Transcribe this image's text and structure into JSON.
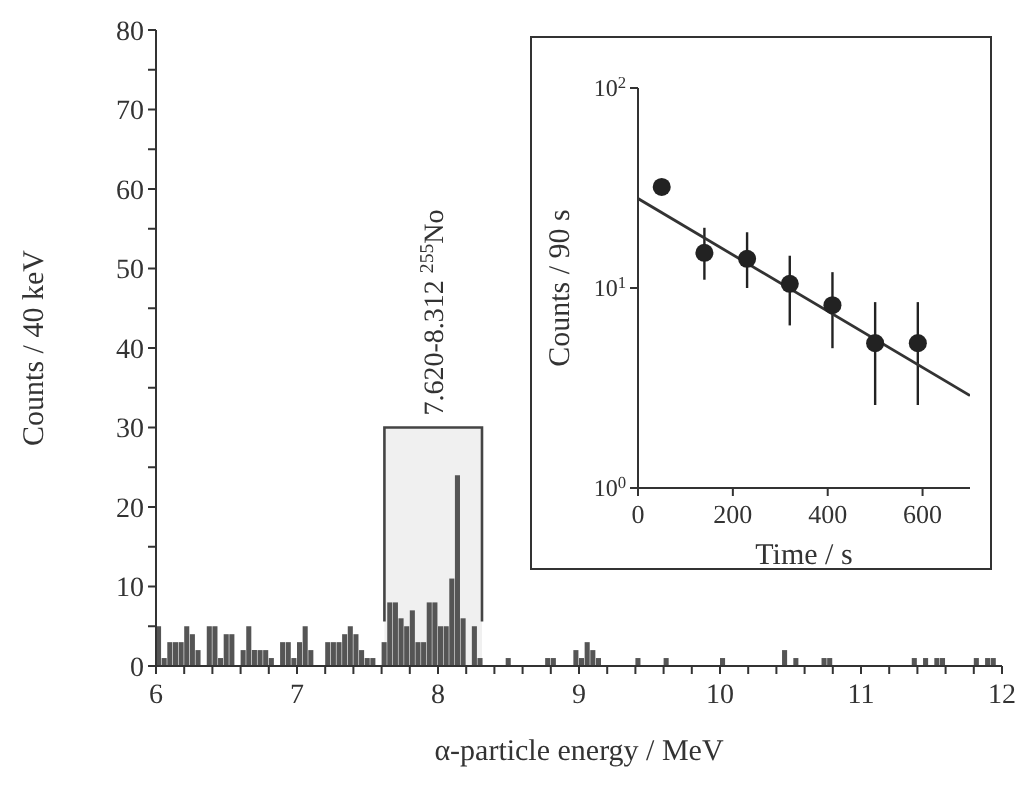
{
  "chart_data": [
    {
      "type": "histogram",
      "xlabel": "α-particle energy / MeV",
      "ylabel": "Counts / 40 keV",
      "color": "#555555",
      "bins": [
        6,
        6.04,
        6.08,
        6.12,
        6.16,
        6.2,
        6.24,
        6.28,
        6.32,
        6.36,
        6.4,
        6.44,
        6.48,
        6.52,
        6.56,
        6.6,
        6.64,
        6.68,
        6.72,
        6.76,
        6.8,
        6.84,
        6.88,
        6.92,
        6.96,
        7,
        7.04,
        7.08,
        7.12,
        7.16,
        7.2,
        7.24,
        7.28,
        7.32,
        7.36,
        7.4,
        7.44,
        7.48,
        7.52,
        7.56,
        7.6,
        7.64,
        7.68,
        7.72,
        7.76,
        7.8,
        7.84,
        7.88,
        7.92,
        7.96,
        8,
        8.04,
        8.08,
        8.12,
        8.16,
        8.2,
        8.24,
        8.28,
        8.32,
        8.36,
        8.4,
        8.44,
        8.48,
        8.52,
        8.56,
        8.6,
        8.64,
        8.68,
        8.72,
        8.76,
        8.8,
        8.84,
        8.88,
        8.92,
        8.96,
        9,
        9.04,
        9.08,
        9.12,
        9.16,
        9.2,
        9.24,
        9.28,
        9.32,
        9.36,
        9.4,
        9.44,
        9.48,
        9.52,
        9.56,
        9.6,
        9.64,
        9.68,
        9.72,
        9.76,
        9.8,
        9.84,
        9.88,
        9.92,
        9.96,
        10,
        10.04,
        10.08,
        10.12,
        10.16,
        10.2,
        10.24,
        10.28,
        10.32,
        10.36,
        10.4,
        10.44,
        10.48,
        10.52,
        10.56,
        10.6,
        10.64,
        10.68,
        10.72,
        10.76,
        10.8,
        10.84,
        10.88,
        10.92,
        10.96,
        11,
        11.04,
        11.08,
        11.12,
        11.16,
        11.2,
        11.24,
        11.28,
        11.32,
        11.36,
        11.4,
        11.44,
        11.48,
        11.52,
        11.56,
        11.6,
        11.64,
        11.68,
        11.72,
        11.76,
        11.8,
        11.84,
        11.88,
        11.92,
        11.96,
        12
      ],
      "values": [
        5,
        1,
        3,
        3,
        3,
        5,
        4,
        2,
        0,
        5,
        5,
        1,
        4,
        4,
        0,
        2,
        5,
        2,
        2,
        2,
        1,
        0,
        3,
        3,
        1,
        3,
        5,
        2,
        0,
        0,
        3,
        3,
        3,
        4,
        5,
        4,
        2,
        1,
        1,
        0,
        3,
        8,
        8,
        6,
        5,
        7,
        3,
        3,
        8,
        8,
        5,
        5,
        11,
        24,
        6,
        0,
        5,
        1,
        0,
        0,
        0,
        0,
        1,
        0,
        0,
        0,
        0,
        0,
        0,
        1,
        1,
        0,
        0,
        0,
        2,
        1,
        3,
        2,
        1,
        0,
        0,
        0,
        0,
        0,
        0,
        1,
        0,
        0,
        0,
        0,
        1,
        0,
        0,
        0,
        0,
        0,
        0,
        0,
        0,
        0,
        1,
        0,
        0,
        0,
        0,
        0,
        0,
        0,
        0,
        0,
        0,
        2,
        0,
        1,
        0,
        0,
        0,
        0,
        1,
        1,
        0,
        0,
        0,
        0,
        0,
        0,
        0,
        0,
        0,
        0,
        0,
        0,
        0,
        0,
        1,
        0,
        1,
        0,
        1,
        1,
        0,
        0,
        0,
        0,
        0,
        1,
        0,
        1,
        1,
        0
      ],
      "xlim": [
        6,
        12
      ],
      "ylim": [
        0,
        80
      ],
      "xticks": [
        6,
        {
          "value": 6.2,
          "label": null
        },
        {
          "value": 6.4,
          "label": null
        },
        {
          "value": 6.6,
          "label": null
        },
        {
          "value": 6.8,
          "label": null
        },
        7,
        {
          "value": 7.2,
          "label": null
        },
        {
          "value": 7.4,
          "label": null
        },
        {
          "value": 7.6,
          "label": null
        },
        {
          "value": 7.8,
          "label": null
        },
        8,
        {
          "value": 8.2,
          "label": null
        },
        {
          "value": 8.4,
          "label": null
        },
        {
          "value": 8.6,
          "label": null
        },
        {
          "value": 8.8,
          "label": null
        },
        9,
        {
          "value": 9.2,
          "label": null
        },
        {
          "value": 9.4,
          "label": null
        },
        {
          "value": 9.6,
          "label": null
        },
        {
          "value": 9.8,
          "label": null
        },
        10,
        {
          "value": 10.2,
          "label": null
        },
        {
          "value": 10.4,
          "label": null
        },
        {
          "value": 10.6,
          "label": null
        },
        {
          "value": 10.8,
          "label": null
        },
        11,
        {
          "value": 11.2,
          "label": null
        },
        {
          "value": 11.4,
          "label": null
        },
        {
          "value": 11.6,
          "label": null
        },
        {
          "value": 11.8,
          "label": null
        },
        12
      ],
      "yticks": [
        0,
        {
          "value": 5,
          "label": null
        },
        10,
        {
          "value": 15,
          "label": null
        },
        20,
        {
          "value": 25,
          "label": null
        },
        30,
        {
          "value": 35,
          "label": null
        },
        40,
        {
          "value": 45,
          "label": null
        },
        50,
        {
          "value": 55,
          "label": null
        },
        60,
        {
          "value": 65,
          "label": null
        },
        70,
        {
          "value": 75,
          "label": null
        },
        80
      ],
      "bands": [
        {
          "axis": "x",
          "from": 7.62,
          "to": 8.312,
          "label": "7.620-8.312 $^{255}$No",
          "color": "#f0f0f0"
        }
      ]
    },
    {
      "type": "scatter",
      "xlabel": "Time / s",
      "ylabel": "Counts / 90 s",
      "log": "y",
      "xlim": [
        0,
        700
      ],
      "ylim": [
        1,
        100
      ],
      "xticks": [
        0,
        200,
        400,
        600
      ],
      "yticks": [
        {
          "value": 1,
          "label": "10$^{0}$"
        },
        {
          "value": 10,
          "label": "10$^{1}$"
        },
        {
          "value": 100,
          "label": "10$^{2}$"
        }
      ],
      "series": [
        {
          "type": "scatter",
          "marker": "circle",
          "color": "#222222",
          "x": [
            50,
            140,
            230,
            320,
            410,
            500,
            590
          ],
          "values": [
            32,
            15,
            14,
            10.5,
            8.2,
            5.3,
            5.3
          ],
          "errors": [
            null,
            [
              11,
              20
            ],
            [
              10,
              19
            ],
            [
              6.5,
              14.5
            ],
            [
              5,
              12
            ],
            [
              2.6,
              8.5
            ],
            [
              2.6,
              8.5
            ]
          ]
        },
        {
          "type": "line",
          "color": "#333333",
          "x": [
            0,
            700
          ],
          "values": [
            28,
            2.9
          ]
        }
      ]
    }
  ]
}
